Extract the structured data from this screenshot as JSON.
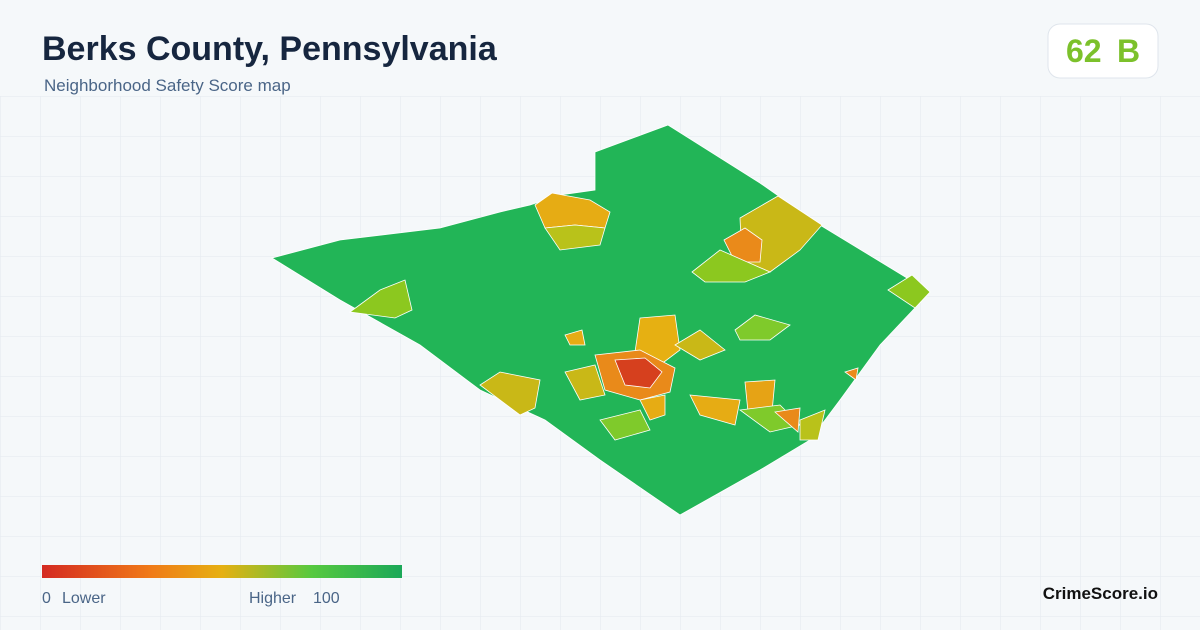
{
  "header": {
    "title": "Berks County, Pennsylvania",
    "subtitle": "Neighborhood Safety Score map"
  },
  "score": {
    "value": 62,
    "grade": "B"
  },
  "legend": {
    "min": 0,
    "min_label": "Lower",
    "max_label": "Higher",
    "max": 100
  },
  "footer": {
    "brand": "CrimeScore.io"
  }
}
